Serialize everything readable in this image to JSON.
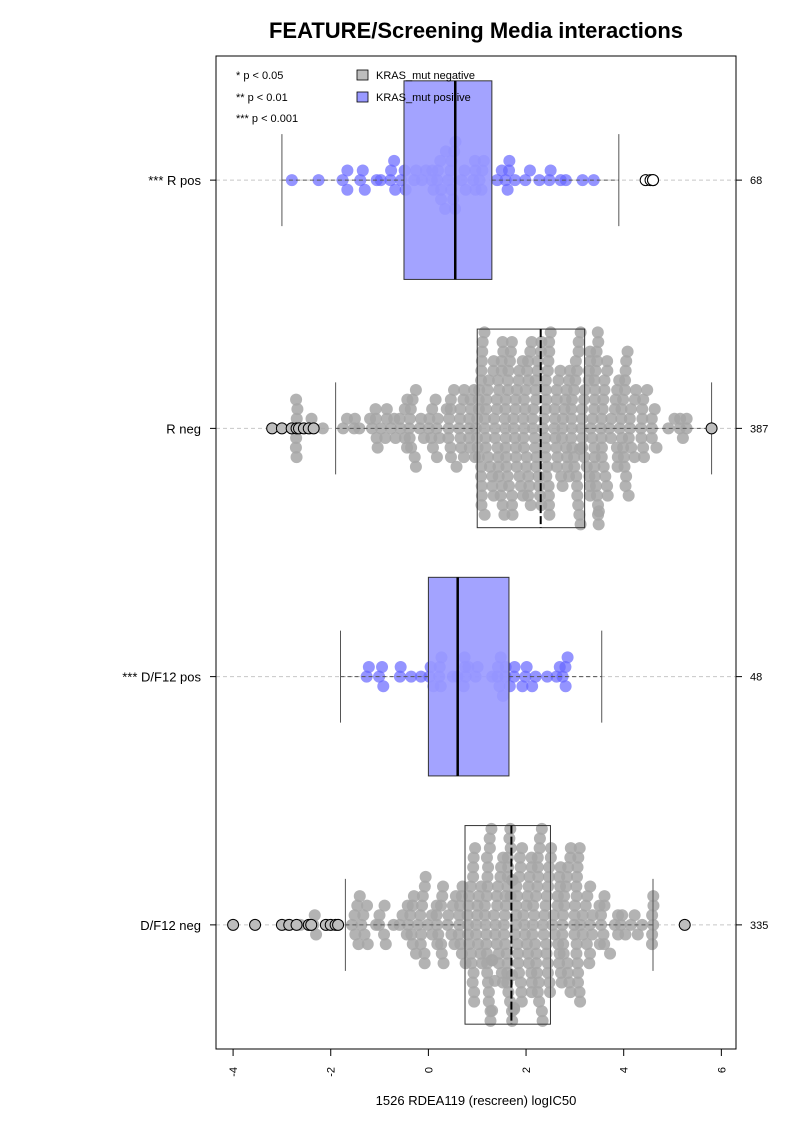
{
  "chart_data": {
    "type": "boxplot",
    "orientation": "horizontal",
    "title": "FEATURE/Screening Media interactions",
    "xlabel": "1526 RDEA119 (rescreen) logIC50",
    "xlim": [
      -4.35,
      6.3
    ],
    "xticks": [
      -4,
      -2,
      0,
      2,
      4,
      6
    ],
    "xtick_labels": [
      "-4",
      "-2",
      "0",
      "2",
      "4",
      "6"
    ],
    "significance_legend": [
      "* p < 0.05",
      "** p < 0.01",
      "*** p < 0.001"
    ],
    "legend": [
      {
        "label": "KRAS_mut negative",
        "color": "#bdbdbd"
      },
      {
        "label": "KRAS_mut positive",
        "color": "#9999ff"
      }
    ],
    "colors": {
      "negative_box": "#bdbdbd",
      "positive_box": "#9999ff",
      "negative_point": "#a6a6a6",
      "positive_point": "#6666ff",
      "gridline": "#c8c8c8"
    },
    "groups": [
      {
        "label": "*** R pos",
        "n": "68",
        "kras": "positive",
        "q1": -0.5,
        "median": 0.55,
        "q3": 1.3,
        "whisker_low": -3.0,
        "whisker_high": 3.9,
        "outliers": [
          4.45,
          4.55,
          4.6,
          4.6
        ],
        "point_min": -3.0,
        "point_max": 3.9,
        "point_count": 66
      },
      {
        "label": "R neg",
        "n": "387",
        "kras": "negative",
        "q1": 1.0,
        "median": 2.3,
        "q3": 3.2,
        "whisker_low": -1.9,
        "whisker_high": 5.8,
        "outliers": [
          -3.2,
          -3.0,
          -2.8,
          -2.7,
          -2.65,
          -2.55,
          -2.45,
          -2.35,
          5.8
        ],
        "point_min": -2.7,
        "point_max": 5.3,
        "point_count": 380
      },
      {
        "label": "*** D/F12 pos",
        "n": "48",
        "kras": "positive",
        "q1": 0.0,
        "median": 0.6,
        "q3": 1.65,
        "whisker_low": -1.8,
        "whisker_high": 3.55,
        "outliers": [],
        "point_min": -1.8,
        "point_max": 3.55,
        "point_count": 48
      },
      {
        "label": "D/F12 neg",
        "n": "335",
        "kras": "negative",
        "q1": 0.75,
        "median": 1.7,
        "q3": 2.5,
        "whisker_low": -1.7,
        "whisker_high": 4.6,
        "outliers": [
          -4.0,
          -3.55,
          -3.0,
          -2.85,
          -2.7,
          -2.45,
          -2.4,
          -2.1,
          -2.0,
          -1.9,
          -1.85,
          5.25
        ],
        "point_min": -2.9,
        "point_max": 4.6,
        "point_count": 320
      }
    ]
  }
}
